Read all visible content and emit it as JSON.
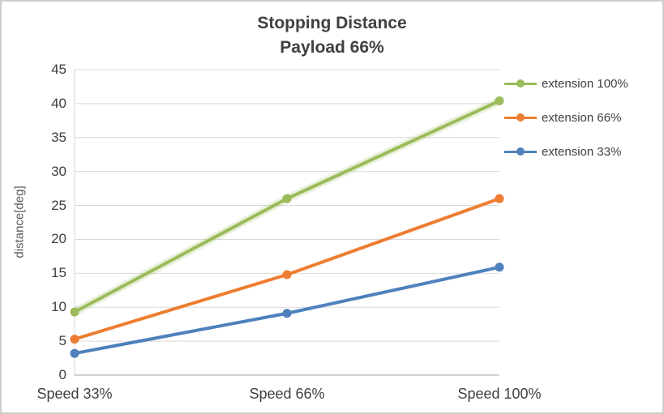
{
  "chart_data": {
    "type": "line",
    "title": "Stopping Distance Payload 66%",
    "title_lines": [
      "Stopping Distance",
      "Payload 66%"
    ],
    "ylabel": "distance[deg]",
    "categories": [
      "Speed 33%",
      "Speed 66%",
      "Speed 100%"
    ],
    "series": [
      {
        "name": "extension 100%",
        "color": "#9BBB59",
        "glow": true,
        "values": [
          9.3,
          26.0,
          40.4
        ]
      },
      {
        "name": "extension 66%",
        "color": "#ED7D31",
        "glow": false,
        "values": [
          5.3,
          14.8,
          26.0
        ]
      },
      {
        "name": "extension 33%",
        "color": "#4E81BD",
        "glow": false,
        "values": [
          3.2,
          9.1,
          15.9
        ]
      }
    ],
    "ylim": [
      0,
      45
    ],
    "yticks": [
      0,
      5,
      10,
      15,
      20,
      25,
      30,
      35,
      40,
      45
    ],
    "grid": true,
    "legend_position": "right",
    "colors": {
      "gridline": "#D9D9D9",
      "axis": "#BFBFBF",
      "title_text": "#404040",
      "tick_text": "#404040"
    }
  }
}
